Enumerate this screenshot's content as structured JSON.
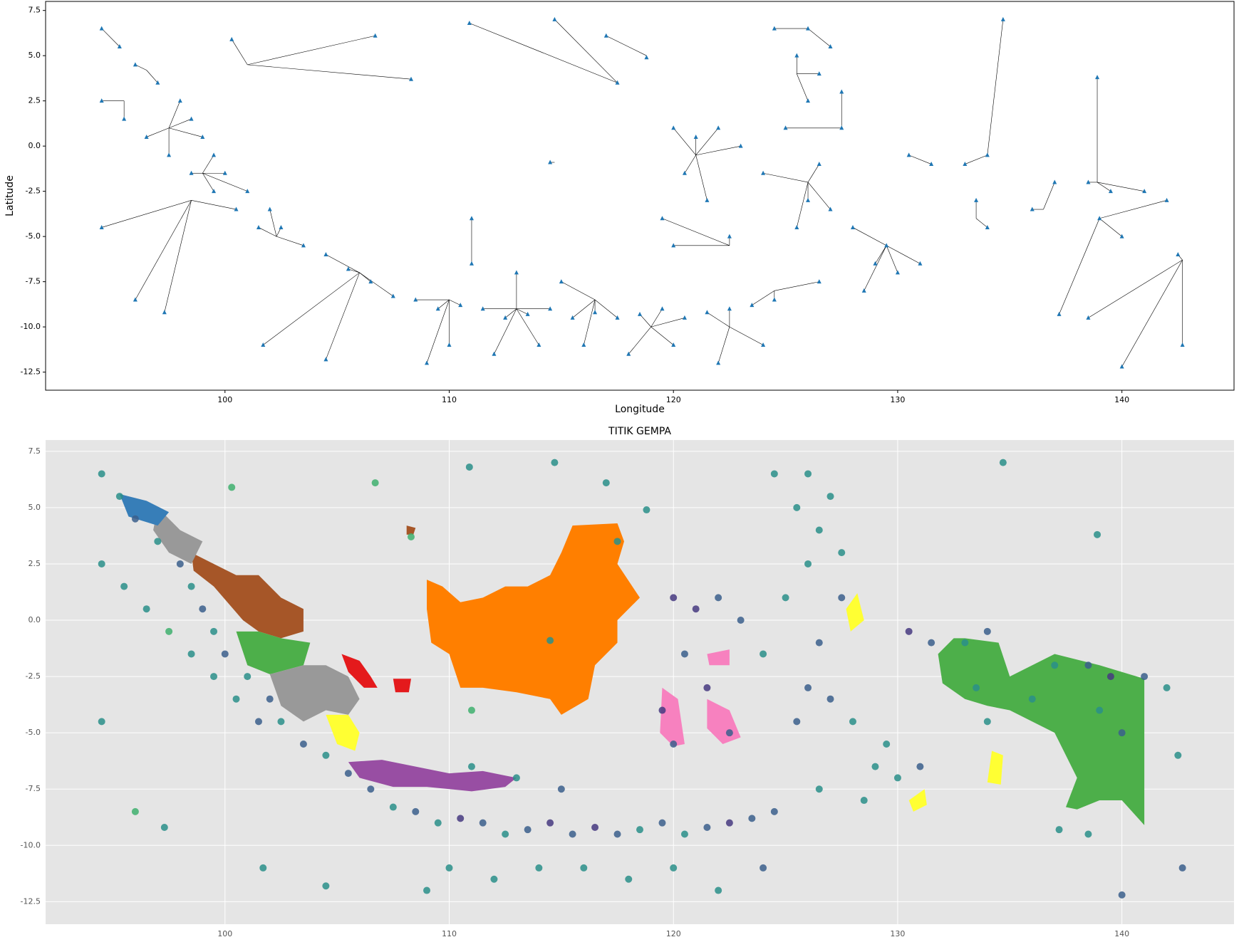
{
  "chart_data": [
    {
      "type": "scatter",
      "x_label": "Longitude",
      "y_label": "Latitude",
      "color": "#1f77b4",
      "line_color": "#000000",
      "xlim": [
        92,
        145
      ],
      "ylim": [
        -13.5,
        8
      ],
      "xticks": [
        100,
        110,
        120,
        130,
        140
      ],
      "yticks": [
        7.5,
        {
          "value": 5,
          "label": "5.0"
        },
        2.5,
        {
          "value": 0,
          "label": "0.0"
        },
        -2.5,
        {
          "value": -5,
          "label": "-5.0"
        },
        -7.5,
        {
          "value": -10,
          "label": "-10.0"
        },
        -12.5
      ],
      "x": [
        94.5,
        95.3,
        96,
        97,
        98,
        98.5,
        99,
        99.5,
        100,
        101,
        102,
        102.5,
        103.5,
        104.5,
        105.5,
        94.5,
        95.5,
        96.5,
        97.5,
        98.5,
        99.5,
        100.5,
        101.5,
        94.5,
        96,
        97.3,
        106.5,
        107.5,
        108.5,
        109.5,
        110.5,
        111.5,
        112.5,
        113.5,
        114.5,
        115.5,
        116.5,
        117.5,
        118.5,
        119.5,
        120.5,
        121.5,
        122.5,
        123.5,
        124.5,
        110,
        112,
        114,
        116,
        118,
        120,
        122,
        124,
        109,
        111,
        113,
        115,
        120,
        121,
        122,
        123,
        120.5,
        121.5,
        122.5,
        119.5,
        120,
        124,
        125,
        126,
        126.5,
        125.5,
        124.5,
        126,
        127,
        127.5,
        127.5,
        126.5,
        126,
        127,
        128,
        129,
        130,
        128.5,
        126.5,
        125.5,
        129.5,
        131,
        130.5,
        131.5,
        133,
        134,
        133.5,
        134,
        136,
        137,
        138.5,
        139.5,
        141,
        142,
        142.5,
        139,
        140,
        138.5,
        140,
        137.2,
        142.7,
        138.9,
        134.7,
        100.3,
        106.7,
        110.9,
        114.7,
        117,
        118.8,
        117.5,
        114.5,
        108.3,
        111,
        104.5,
        101.7
      ],
      "y": [
        6.5,
        5.5,
        4.5,
        3.5,
        2.5,
        1.5,
        0.5,
        -0.5,
        -1.5,
        -2.5,
        -3.5,
        -4.5,
        -5.5,
        -6,
        -6.8,
        2.5,
        1.5,
        0.5,
        -0.5,
        -1.5,
        -2.5,
        -3.5,
        -4.5,
        -4.5,
        -8.5,
        -9.2,
        -7.5,
        -8.3,
        -8.5,
        -9,
        -8.8,
        -9,
        -9.5,
        -9.3,
        -9,
        -9.5,
        -9.2,
        -9.5,
        -9.3,
        -9,
        -9.5,
        -9.2,
        -9,
        -8.8,
        -8.5,
        -11,
        -11.5,
        -11,
        -11,
        -11.5,
        -11,
        -12,
        -11,
        -12,
        -6.5,
        -7,
        -7.5,
        1,
        0.5,
        1,
        0,
        -1.5,
        -3,
        -5,
        -4,
        -5.5,
        -1.5,
        1,
        2.5,
        4,
        5,
        6.5,
        6.5,
        5.5,
        3,
        1,
        -1,
        -3,
        -3.5,
        -4.5,
        -6.5,
        -7,
        -8,
        -7.5,
        -4.5,
        -5.5,
        -6.5,
        -0.5,
        -1,
        -1,
        -0.5,
        -3,
        -4.5,
        -3.5,
        -2,
        -2,
        -2.5,
        -2.5,
        -3,
        -6,
        -4,
        -5,
        -9.5,
        -12.2,
        -9.3,
        -11,
        3.8,
        7,
        5.9,
        6.1,
        6.8,
        7,
        6.1,
        4.9,
        3.5,
        -0.9,
        3.7,
        -4,
        -11.8,
        -11
      ],
      "hubs_x": [
        95.3,
        96.5,
        95.5,
        97.5,
        99,
        98.5,
        102.3,
        104.5,
        101,
        114.7,
        117.5,
        118.8,
        106,
        110,
        113,
        116.5,
        119,
        122.5,
        124.5,
        121,
        122.5,
        125.5,
        126,
        127.5,
        126,
        129.5,
        130.5,
        133.5,
        134,
        136.5,
        138.9,
        139,
        142.7,
        111
      ],
      "hubs_y": [
        5.5,
        4.2,
        2.5,
        1,
        -1.5,
        -3,
        -5,
        -2.8,
        4.5,
        -0.9,
        3.5,
        5,
        -7,
        -8.5,
        -9,
        -8.5,
        -10,
        -10,
        -8,
        -0.5,
        -5.5,
        4,
        6.5,
        1,
        -2,
        -5.5,
        -0.5,
        -4,
        -0.5,
        -3.5,
        -2,
        -4,
        -6.3,
        -6.5
      ]
    },
    {
      "type": "scatter",
      "title": "TITIK GEMPA",
      "xlim": [
        92,
        145
      ],
      "ylim": [
        -13.5,
        8
      ],
      "grid": true,
      "xticks": [
        100,
        110,
        120,
        130,
        140
      ],
      "yticks": [
        7.5,
        {
          "value": 5,
          "label": "5.0"
        },
        2.5,
        {
          "value": 0,
          "label": "0.0"
        },
        -2.5,
        {
          "value": -5,
          "label": "-5.0"
        },
        -7.5,
        {
          "value": -10,
          "label": "-10.0"
        },
        -12.5
      ],
      "x": [
        94.5,
        95.3,
        96,
        97,
        98,
        98.5,
        99,
        99.5,
        100,
        101,
        102,
        102.5,
        103.5,
        104.5,
        105.5,
        94.5,
        95.5,
        96.5,
        97.5,
        98.5,
        99.5,
        100.5,
        101.5,
        94.5,
        96,
        97.3,
        106.5,
        107.5,
        108.5,
        109.5,
        110.5,
        111.5,
        112.5,
        113.5,
        114.5,
        115.5,
        116.5,
        117.5,
        118.5,
        119.5,
        120.5,
        121.5,
        122.5,
        123.5,
        124.5,
        110,
        112,
        114,
        116,
        118,
        120,
        122,
        124,
        109,
        111,
        113,
        115,
        120,
        121,
        122,
        123,
        120.5,
        121.5,
        122.5,
        119.5,
        120,
        124,
        125,
        126,
        126.5,
        125.5,
        124.5,
        126,
        127,
        127.5,
        127.5,
        126.5,
        126,
        127,
        128,
        129,
        130,
        128.5,
        126.5,
        125.5,
        129.5,
        131,
        130.5,
        131.5,
        133,
        134,
        133.5,
        134,
        136,
        137,
        138.5,
        139.5,
        141,
        142,
        142.5,
        139,
        140,
        138.5,
        140,
        137.2,
        142.7,
        138.9,
        134.7,
        100.3,
        106.7,
        110.9,
        114.7,
        117,
        118.8,
        117.5,
        114.5,
        108.3,
        111,
        104.5,
        101.7
      ],
      "y": [
        6.5,
        5.5,
        4.5,
        3.5,
        2.5,
        1.5,
        0.5,
        -0.5,
        -1.5,
        -2.5,
        -3.5,
        -4.5,
        -5.5,
        -6,
        -6.8,
        2.5,
        1.5,
        0.5,
        -0.5,
        -1.5,
        -2.5,
        -3.5,
        -4.5,
        -4.5,
        -8.5,
        -9.2,
        -7.5,
        -8.3,
        -8.5,
        -9,
        -8.8,
        -9,
        -9.5,
        -9.3,
        -9,
        -9.5,
        -9.2,
        -9.5,
        -9.3,
        -9,
        -9.5,
        -9.2,
        -9,
        -8.8,
        -8.5,
        -11,
        -11.5,
        -11,
        -11,
        -11.5,
        -11,
        -12,
        -11,
        -12,
        -6.5,
        -7,
        -7.5,
        1,
        0.5,
        1,
        0,
        -1.5,
        -3,
        -5,
        -4,
        -5.5,
        -1.5,
        1,
        2.5,
        4,
        5,
        6.5,
        6.5,
        5.5,
        3,
        1,
        -1,
        -3,
        -3.5,
        -4.5,
        -6.5,
        -7,
        -8,
        -7.5,
        -4.5,
        -5.5,
        -6.5,
        -0.5,
        -1,
        -1,
        -0.5,
        -3,
        -4.5,
        -3.5,
        -2,
        -2,
        -2.5,
        -2.5,
        -3,
        -6,
        -4,
        -5,
        -9.5,
        -12.2,
        -9.3,
        -11,
        3.8,
        7,
        5.9,
        6.1,
        6.8,
        7,
        6.1,
        4.9,
        3.5,
        -0.9,
        3.7,
        -4,
        -11.8,
        -11
      ],
      "colors": [
        "#2a8f8a",
        "#2a8f8a",
        "#3b5f8c",
        "#2a8f8a",
        "#3b5f8c",
        "#2a8f8a",
        "#3b5f8c",
        "#2a8f8a",
        "#3b5f8c",
        "#2a8f8a",
        "#3b5f8c",
        "#2a8f8a",
        "#3b5f8c",
        "#2a8f8a",
        "#3b5f8c",
        "#2a8f8a",
        "#2a8f8a",
        "#2a8f8a",
        "#3fb06e",
        "#2a8f8a",
        "#2a8f8a",
        "#2a8f8a",
        "#3b5f8c",
        "#2a8f8a",
        "#3fb06e",
        "#2a8f8a",
        "#3b5f8c",
        "#2a8f8a",
        "#3b5f8c",
        "#2a8f8a",
        "#463a80",
        "#3b5f8c",
        "#2a8f8a",
        "#3b5f8c",
        "#463a80",
        "#3b5f8c",
        "#463a80",
        "#3b5f8c",
        "#2a8f8a",
        "#3b5f8c",
        "#2a8f8a",
        "#3b5f8c",
        "#463a80",
        "#3b5f8c",
        "#3b5f8c",
        "#2a8f8a",
        "#2a8f8a",
        "#2a8f8a",
        "#2a8f8a",
        "#2a8f8a",
        "#2a8f8a",
        "#2a8f8a",
        "#3b5f8c",
        "#2a8f8a",
        "#2a8f8a",
        "#2a8f8a",
        "#3b5f8c",
        "#463a80",
        "#463a80",
        "#3b5f8c",
        "#3b5f8c",
        "#3b5f8c",
        "#463a80",
        "#3b5f8c",
        "#463a80",
        "#3b5f8c",
        "#2a8f8a",
        "#2a8f8a",
        "#2a8f8a",
        "#2a8f8a",
        "#2a8f8a",
        "#2a8f8a",
        "#2a8f8a",
        "#2a8f8a",
        "#2a8f8a",
        "#3b5f8c",
        "#3b5f8c",
        "#3b5f8c",
        "#3b5f8c",
        "#2a8f8a",
        "#2a8f8a",
        "#2a8f8a",
        "#2a8f8a",
        "#2a8f8a",
        "#3b5f8c",
        "#2a8f8a",
        "#3b5f8c",
        "#463a80",
        "#3b5f8c",
        "#2a8f8a",
        "#3b5f8c",
        "#2a8f8a",
        "#2a8f8a",
        "#2a8f8a",
        "#2a8f8a",
        "#3b5f8c",
        "#463a80",
        "#3b5f8c",
        "#2a8f8a",
        "#2a8f8a",
        "#2a8f8a",
        "#3b5f8c",
        "#2a8f8a",
        "#3b5f8c",
        "#2a8f8a",
        "#3b5f8c",
        "#2a8f8a",
        "#2a8f8a",
        "#3fb06e",
        "#3fb06e",
        "#2a8f8a",
        "#2a8f8a",
        "#2a8f8a",
        "#2a8f8a",
        "#2a8f8a",
        "#2a8f8a",
        "#3fb06e",
        "#3fb06e",
        "#2a8f8a",
        "#2a8f8a"
      ]
    }
  ]
}
